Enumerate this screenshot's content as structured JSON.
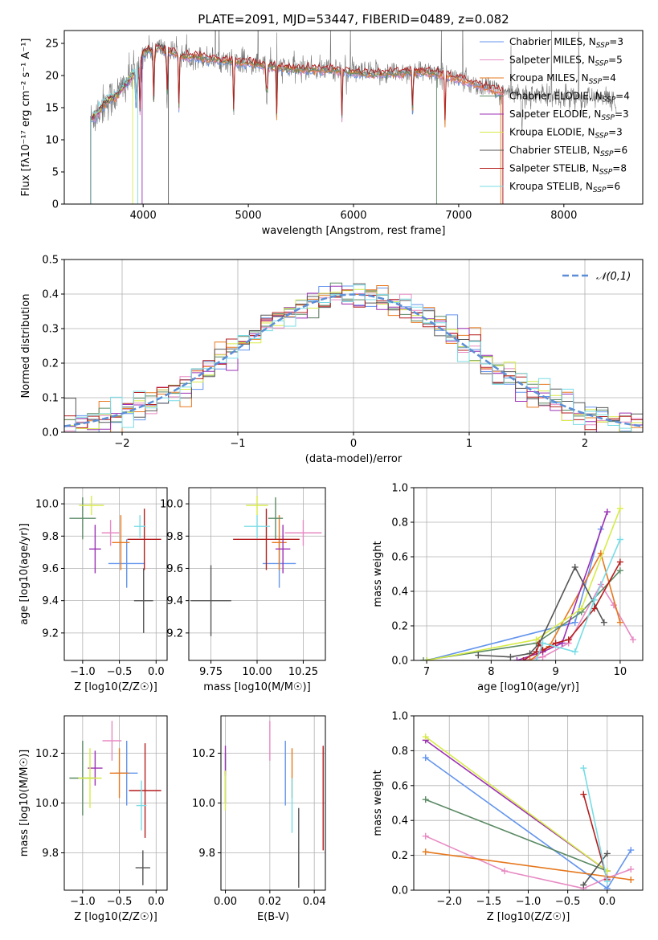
{
  "figure_title": "PLATE=2091, MJD=53447, FIBERID=0489, z=0.082",
  "colors": {
    "Chabrier MILES": "#6495ed",
    "Salpeter MILES": "#e78ac3",
    "Kroupa MILES": "#e6781e",
    "Chabrier ELODIE": "#5a8a64",
    "Salpeter ELODIE": "#9b30b4",
    "Kroupa ELODIE": "#d7eb46",
    "Chabrier STELIB": "#555555",
    "Salpeter STELIB": "#b41e1e",
    "Kroupa STELIB": "#78dce6"
  },
  "chart_data": [
    {
      "type": "line",
      "title": "PLATE=2091, MJD=53447, FIBERID=0489, z=0.082",
      "xlabel": "wavelength [Angstrom, rest frame]",
      "ylabel": "Flux [fλ10⁻¹⁷ erg cm⁻² s⁻¹ A⁻¹]",
      "xlim": [
        3250,
        8750
      ],
      "ylim": [
        0,
        27
      ],
      "xticks": [
        "4000",
        "5000",
        "6000",
        "7000",
        "8000"
      ],
      "yticks": [
        "0",
        "5",
        "10",
        "15",
        "20",
        "25"
      ],
      "grid": false,
      "legend_position": "right",
      "legend": [
        "Chabrier MILES, N_SSP=3",
        "Salpeter MILES, N_SSP=5",
        "Kroupa MILES, N_SSP=4",
        "Chabrier ELODIE, N_SSP=4",
        "Salpeter ELODIE, N_SSP=3",
        "Kroupa ELODIE, N_SSP=3",
        "Chabrier STELIB, N_SSP=6",
        "Salpeter STELIB, N_SSP=8",
        "Kroupa STELIB, N_SSP=6"
      ],
      "model_continuum": {
        "x": [
          3500,
          3550,
          3600,
          3650,
          3700,
          3750,
          3800,
          3850,
          3900,
          3950,
          4000,
          4050,
          4100,
          4150,
          4200,
          4300,
          4400,
          4500,
          4700,
          5000,
          5200,
          5500,
          5800,
          6000,
          6200,
          6400,
          6600,
          6800,
          7000,
          7200,
          7400,
          7600,
          7800,
          8000,
          8200,
          8400,
          8500
        ],
        "y": [
          13,
          14,
          15,
          16,
          16.5,
          17,
          18,
          19,
          20,
          21,
          23.5,
          24,
          23.8,
          24.5,
          24,
          23.5,
          23,
          23,
          22.5,
          22,
          21.5,
          21,
          21,
          20.5,
          20.3,
          20.5,
          20.7,
          20.3,
          19.5,
          18.5,
          17.5,
          17,
          16.8,
          16.8,
          16.5,
          16.5,
          16
        ]
      },
      "model_end_wavelengths": [
        7420,
        7420,
        7400,
        6790,
        3990,
        3900,
        4240,
        7420,
        3950
      ]
    },
    {
      "type": "histogram",
      "xlabel": "(data-model)/error",
      "ylabel": "Normed distribution",
      "xlim": [
        -2.5,
        2.5
      ],
      "ylim": [
        0,
        0.5
      ],
      "xticks": [
        "−2",
        "−1",
        "0",
        "1",
        "2"
      ],
      "yticks": [
        "0.0",
        "0.1",
        "0.2",
        "0.3",
        "0.4",
        "0.5"
      ],
      "grid": true,
      "legend_position": "top-right",
      "reference_curve": "𝒩(0,1)",
      "bins": [
        -2.5,
        2.5,
        50
      ]
    },
    {
      "type": "scatter",
      "xlabel": "Z [log10(Z/Z☉)]",
      "ylabel": "age  [log10(age/yr)]",
      "xlim": [
        -1.25,
        0.15
      ],
      "ylim": [
        9.03,
        10.1
      ],
      "xticks": [
        "−1.0",
        "−0.5",
        "0.0"
      ],
      "yticks": [
        "9.2",
        "9.4",
        "9.6",
        "9.8",
        "10.0"
      ],
      "grid": true,
      "points": [
        {
          "model": "Chabrier MILES",
          "x": -0.4,
          "y": 9.63,
          "xerr": 0.25,
          "yerr": 0.15
        },
        {
          "model": "Salpeter MILES",
          "x": -0.62,
          "y": 9.82,
          "xerr": 0.12,
          "yerr": 0.08
        },
        {
          "model": "Kroupa MILES",
          "x": -0.48,
          "y": 9.76,
          "xerr": 0.12,
          "yerr": 0.17
        },
        {
          "model": "Chabrier ELODIE",
          "x": -1.0,
          "y": 9.91,
          "xerr": 0.18,
          "yerr": 0.13
        },
        {
          "model": "Salpeter ELODIE",
          "x": -0.83,
          "y": 9.72,
          "xerr": 0.08,
          "yerr": 0.15
        },
        {
          "model": "Kroupa ELODIE",
          "x": -0.88,
          "y": 9.99,
          "xerr": 0.17,
          "yerr": 0.06
        },
        {
          "model": "Chabrier STELIB",
          "x": -0.17,
          "y": 9.4,
          "xerr": 0.13,
          "yerr": 0.2
        },
        {
          "model": "Salpeter STELIB",
          "x": -0.16,
          "y": 9.78,
          "xerr": 0.23,
          "yerr": 0.19
        },
        {
          "model": "Kroupa STELIB",
          "x": -0.22,
          "y": 9.86,
          "xerr": 0.08,
          "yerr": 0.07
        }
      ]
    },
    {
      "type": "scatter",
      "xlabel": "mass [log10(M/M☉)]",
      "xlim": [
        9.63,
        10.37
      ],
      "ylim": [
        9.03,
        10.1
      ],
      "xticks": [
        "9.75",
        "10.00",
        "10.25"
      ],
      "yticks": [
        "9.2",
        "9.4",
        "9.6",
        "9.8",
        "10.0"
      ],
      "grid": true,
      "points": [
        {
          "model": "Chabrier MILES",
          "x": 10.12,
          "y": 9.63,
          "xerr": 0.09,
          "yerr": 0.15
        },
        {
          "model": "Salpeter MILES",
          "x": 10.25,
          "y": 9.82,
          "xerr": 0.1,
          "yerr": 0.08
        },
        {
          "model": "Kroupa MILES",
          "x": 10.12,
          "y": 9.76,
          "xerr": 0.04,
          "yerr": 0.17
        },
        {
          "model": "Chabrier ELODIE",
          "x": 10.1,
          "y": 9.91,
          "xerr": 0.04,
          "yerr": 0.13
        },
        {
          "model": "Salpeter ELODIE",
          "x": 10.14,
          "y": 9.72,
          "xerr": 0.04,
          "yerr": 0.15
        },
        {
          "model": "Kroupa ELODIE",
          "x": 10.0,
          "y": 9.99,
          "xerr": 0.06,
          "yerr": 0.06
        },
        {
          "model": "Chabrier STELIB",
          "x": 9.75,
          "y": 9.4,
          "xerr": 0.11,
          "yerr": 0.22
        },
        {
          "model": "Salpeter STELIB",
          "x": 10.05,
          "y": 9.78,
          "xerr": 0.18,
          "yerr": 0.19
        },
        {
          "model": "Kroupa STELIB",
          "x": 10.0,
          "y": 9.86,
          "xerr": 0.07,
          "yerr": 0.07
        }
      ]
    },
    {
      "type": "line",
      "xlabel": "age  [log10(age/yr)]",
      "ylabel": "mass weight",
      "xlim": [
        6.8,
        10.35
      ],
      "ylim": [
        0,
        1
      ],
      "xticks": [
        "7",
        "8",
        "9",
        "10"
      ],
      "yticks": [
        "0.0",
        "0.2",
        "0.4",
        "0.6",
        "0.8",
        "1.0"
      ],
      "grid": true,
      "series": [
        {
          "model": "Chabrier MILES",
          "x": [
            7.0,
            9.3,
            9.7
          ],
          "y": [
            0.0,
            0.22,
            0.76
          ]
        },
        {
          "model": "Salpeter MILES",
          "x": [
            8.5,
            8.8,
            9.2,
            9.7,
            9.9,
            10.2
          ],
          "y": [
            0.0,
            0.02,
            0.1,
            0.44,
            0.32,
            0.12
          ]
        },
        {
          "model": "Kroupa MILES",
          "x": [
            8.6,
            8.9,
            9.7,
            10.0
          ],
          "y": [
            0.0,
            0.08,
            0.62,
            0.22
          ]
        },
        {
          "model": "Chabrier ELODIE",
          "x": [
            6.95,
            8.7,
            9.4,
            10.0
          ],
          "y": [
            0.0,
            0.1,
            0.28,
            0.52
          ]
        },
        {
          "model": "Salpeter ELODIE",
          "x": [
            8.4,
            8.8,
            9.1,
            9.8
          ],
          "y": [
            0.0,
            0.05,
            0.1,
            0.86
          ]
        },
        {
          "model": "Kroupa ELODIE",
          "x": [
            7.0,
            8.7,
            9.4,
            10.0
          ],
          "y": [
            0.0,
            0.12,
            0.3,
            0.88
          ]
        },
        {
          "model": "Chabrier STELIB",
          "x": [
            7.8,
            8.3,
            8.6,
            8.75,
            9.3,
            9.75
          ],
          "y": [
            0.03,
            0.02,
            0.04,
            0.1,
            0.54,
            0.22
          ]
        },
        {
          "model": "Salpeter STELIB",
          "x": [
            8.5,
            8.7,
            8.75,
            8.8,
            9.0,
            9.2,
            9.6,
            10.0
          ],
          "y": [
            0.0,
            0.05,
            0.1,
            0.06,
            0.1,
            0.12,
            0.3,
            0.57
          ]
        },
        {
          "model": "Kroupa STELIB",
          "x": [
            8.7,
            8.8,
            9.3,
            9.6,
            10.0
          ],
          "y": [
            0.0,
            0.1,
            0.05,
            0.35,
            0.7
          ]
        }
      ]
    },
    {
      "type": "scatter",
      "xlabel": "Z [log10(Z/Z☉)]",
      "ylabel": "mass [log10(M/M☉)]",
      "xlim": [
        -1.25,
        0.15
      ],
      "ylim": [
        9.65,
        10.35
      ],
      "xticks": [
        "−1.0",
        "−0.5",
        "0.0"
      ],
      "yticks": [
        "9.8",
        "10.0",
        "10.2"
      ],
      "grid": true,
      "points": [
        {
          "model": "Chabrier MILES",
          "x": -0.4,
          "y": 10.12,
          "xerr": 0.15,
          "yerr": 0.13
        },
        {
          "model": "Salpeter MILES",
          "x": -0.6,
          "y": 10.25,
          "xerr": 0.13,
          "yerr": 0.08
        },
        {
          "model": "Kroupa MILES",
          "x": -0.5,
          "y": 10.12,
          "xerr": 0.13,
          "yerr": 0.1
        },
        {
          "model": "Chabrier ELODIE",
          "x": -1.0,
          "y": 10.1,
          "xerr": 0.18,
          "yerr": 0.15
        },
        {
          "model": "Salpeter ELODIE",
          "x": -0.83,
          "y": 10.14,
          "xerr": 0.1,
          "yerr": 0.07
        },
        {
          "model": "Kroupa ELODIE",
          "x": -0.9,
          "y": 10.1,
          "xerr": 0.16,
          "yerr": 0.12
        },
        {
          "model": "Chabrier STELIB",
          "x": -0.18,
          "y": 9.74,
          "xerr": 0.1,
          "yerr": 0.07
        },
        {
          "model": "Salpeter STELIB",
          "x": -0.15,
          "y": 10.05,
          "xerr": 0.22,
          "yerr": 0.19
        },
        {
          "model": "Kroupa STELIB",
          "x": -0.2,
          "y": 9.99,
          "xerr": 0.07,
          "yerr": 0.1
        }
      ]
    },
    {
      "type": "scatter",
      "xlabel": "E(B-V)",
      "xlim": [
        -0.002,
        0.045
      ],
      "ylim": [
        9.65,
        10.35
      ],
      "xticks": [
        "0.00",
        "0.02",
        "0.04"
      ],
      "yticks": [
        "9.8",
        "10.0",
        "10.2"
      ],
      "grid": true,
      "points": [
        {
          "model": "Chabrier MILES",
          "x": 0.027,
          "y": 10.12,
          "yerr": 0.13
        },
        {
          "model": "Salpeter MILES",
          "x": 0.02,
          "y": 10.25,
          "yerr": 0.08
        },
        {
          "model": "Kroupa MILES",
          "x": 0.03,
          "y": 10.12,
          "yerr": 0.1
        },
        {
          "model": "Chabrier ELODIE",
          "x": 0.0,
          "y": 10.1,
          "yerr": 0.1
        },
        {
          "model": "Salpeter ELODIE",
          "x": 0.0,
          "y": 10.17,
          "yerr": 0.06
        },
        {
          "model": "Kroupa ELODIE",
          "x": 0.0,
          "y": 10.05,
          "yerr": 0.08
        },
        {
          "model": "Chabrier STELIB",
          "x": 0.033,
          "y": 9.82,
          "yerr": 0.16
        },
        {
          "model": "Salpeter STELIB",
          "x": 0.044,
          "y": 10.02,
          "yerr": 0.21
        },
        {
          "model": "Kroupa STELIB",
          "x": 0.03,
          "y": 9.99,
          "yerr": 0.11
        }
      ]
    },
    {
      "type": "line",
      "xlabel": "Z [log10(Z/Z☉)]",
      "ylabel": "mass weight",
      "xlim": [
        -2.45,
        0.45
      ],
      "ylim": [
        0,
        1
      ],
      "xticks": [
        "−2.0",
        "−1.5",
        "−1.0",
        "−0.5",
        "0.0"
      ],
      "yticks": [
        "0.0",
        "0.2",
        "0.4",
        "0.6",
        "0.8",
        "1.0"
      ],
      "grid": true,
      "series": [
        {
          "model": "Chabrier MILES",
          "x": [
            -2.3,
            0.0,
            0.3
          ],
          "y": [
            0.76,
            0.01,
            0.23
          ]
        },
        {
          "model": "Salpeter MILES",
          "x": [
            -2.3,
            -1.3,
            -0.3,
            0.0,
            0.3
          ],
          "y": [
            0.31,
            0.11,
            0.01,
            0.07,
            0.12
          ]
        },
        {
          "model": "Kroupa MILES",
          "x": [
            -2.3,
            0.3
          ],
          "y": [
            0.22,
            0.06
          ]
        },
        {
          "model": "Chabrier ELODIE",
          "x": [
            -2.3,
            0.0
          ],
          "y": [
            0.52,
            0.11
          ]
        },
        {
          "model": "Salpeter ELODIE",
          "x": [
            -2.3,
            0.0
          ],
          "y": [
            0.86,
            0.11
          ]
        },
        {
          "model": "Kroupa ELODIE",
          "x": [
            -2.3,
            0.0
          ],
          "y": [
            0.88,
            0.11
          ]
        },
        {
          "model": "Chabrier STELIB",
          "x": [
            -0.3,
            0.0
          ],
          "y": [
            0.03,
            0.21
          ]
        },
        {
          "model": "Salpeter STELIB",
          "x": [
            -0.3,
            0.0
          ],
          "y": [
            0.55,
            0.06
          ]
        },
        {
          "model": "Kroupa STELIB",
          "x": [
            -0.3,
            0.0
          ],
          "y": [
            0.7,
            0.05
          ]
        }
      ]
    }
  ]
}
